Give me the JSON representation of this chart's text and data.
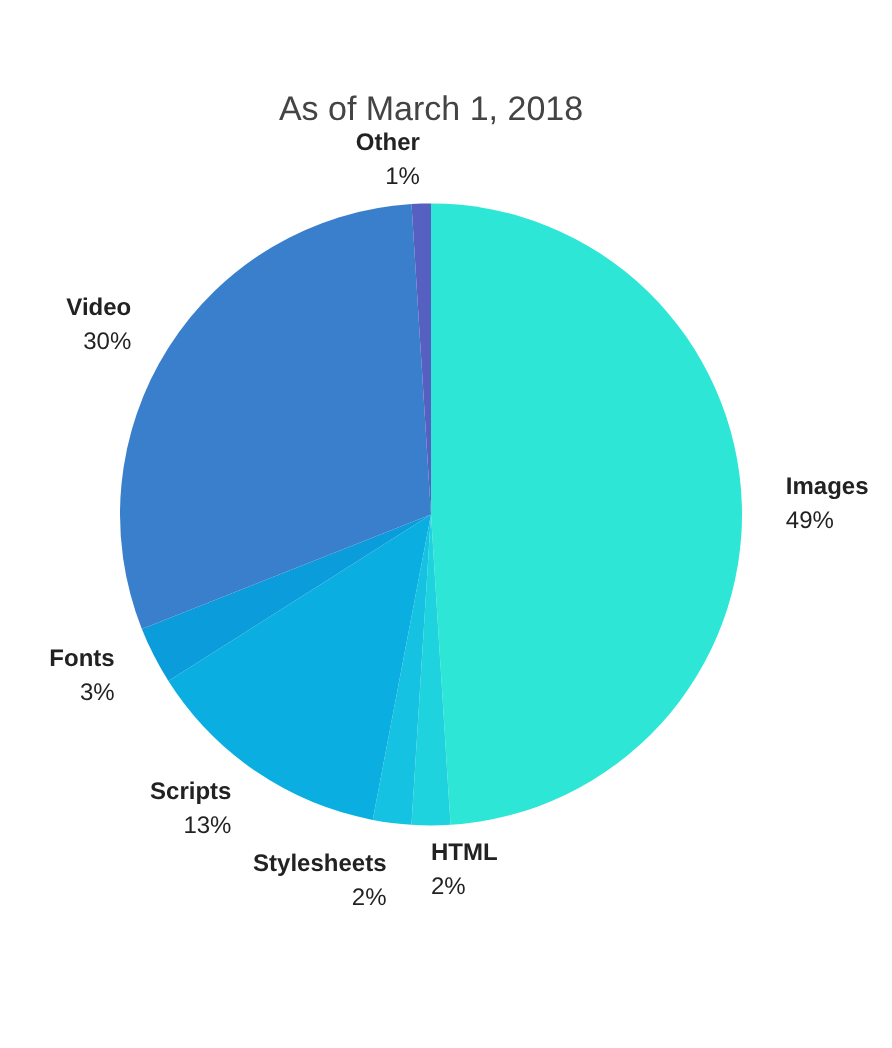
{
  "chart_data": {
    "type": "pie",
    "title": "As of March 1, 2018",
    "categories": [
      "Images",
      "HTML",
      "Stylesheets",
      "Scripts",
      "Fonts",
      "Video",
      "Other"
    ],
    "values": [
      49,
      2,
      2,
      13,
      3,
      30,
      1
    ],
    "colors": [
      "#2de6d6",
      "#1fd3de",
      "#16c2e2",
      "#0aaee0",
      "#0b9ddb",
      "#3a7fcb",
      "#5560c0"
    ],
    "value_labels": [
      "49%",
      "2%",
      "2%",
      "13%",
      "3%",
      "30%",
      "1%"
    ],
    "legend": false
  }
}
